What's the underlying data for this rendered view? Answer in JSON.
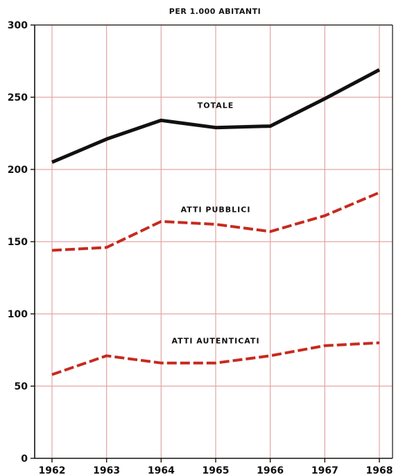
{
  "chart_data": {
    "type": "line",
    "title": "PER 1.000 ABITANTI",
    "x": [
      "1962",
      "1963",
      "1964",
      "1965",
      "1966",
      "1967",
      "1968"
    ],
    "ylim": [
      0,
      300
    ],
    "yticks": [
      "0",
      "50",
      "100",
      "150",
      "200",
      "250",
      "300"
    ],
    "grid": true,
    "series": [
      {
        "name": "TOTALE",
        "values": [
          205,
          221,
          234,
          229,
          230,
          249,
          269
        ],
        "color": "#111111",
        "style": "solid"
      },
      {
        "name": "ATTI PUBBLICI",
        "values": [
          144,
          146,
          164,
          162,
          157,
          168,
          184
        ],
        "color": "#c62a1f",
        "style": "dashed"
      },
      {
        "name": "ATTI AUTENTICATI",
        "values": [
          58,
          71,
          66,
          66,
          71,
          78,
          80
        ],
        "color": "#c62a1f",
        "style": "dashed"
      }
    ],
    "colors": {
      "grid": "#e3a3a3",
      "axis": "#111111"
    }
  }
}
